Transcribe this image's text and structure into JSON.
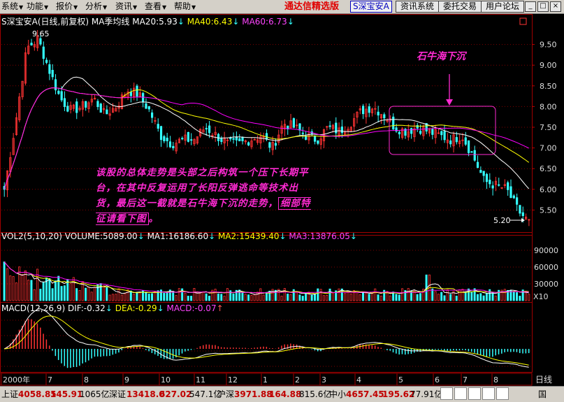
{
  "menu": {
    "items": [
      {
        "label": "系统"
      },
      {
        "label": "功能"
      },
      {
        "label": "报价"
      },
      {
        "label": "分析"
      },
      {
        "label": "资讯"
      },
      {
        "label": "查看"
      },
      {
        "label": "帮助"
      }
    ],
    "app_title": "通达信精选版",
    "stock_tag": "S深宝安A",
    "buttons": [
      "资讯系统",
      "委托交易",
      "用户论坛"
    ],
    "window_buttons": [
      "_",
      "□",
      "×"
    ]
  },
  "price_header": {
    "title": "S深宝安A(日线,前复权)",
    "ma_label": "MA季均线",
    "ma20": "MA20:5.93",
    "ma40": "MA40:6.43",
    "ma60": "MA60:6.73"
  },
  "volume_header": {
    "title": "VOL2(5,10,20)",
    "volume": "VOLUME:5089.00",
    "ma1": "MA1:16186.60",
    "ma2": "MA2:15439.40",
    "ma3": "MA3:13876.05"
  },
  "macd_header": {
    "title": "MACD(12,26,9)",
    "dif": "DIF:-0.32",
    "dea": "DEA:-0.29",
    "macd": "MACD:-0.07"
  },
  "price_axis": [
    "9.50",
    "9.00",
    "8.50",
    "8.00",
    "7.50",
    "7.00",
    "6.50",
    "6.00",
    "5.50"
  ],
  "volume_axis": [
    "90000",
    "60000",
    "30000"
  ],
  "volume_unit": "X10",
  "x_axis": [
    "2000年",
    "7",
    "8",
    "9",
    "10",
    "11",
    "12",
    "1",
    "2",
    "3",
    "4",
    "5",
    "6",
    "7",
    "8"
  ],
  "period_label": "日线",
  "high_label": "9.65",
  "low_label": "5.20",
  "stone_label": "石牛海下沉",
  "annotation": {
    "main": "该股的总体走势是头部之后构筑一个压下长期平台，在其中反复运用了长阳反弹逃命等技术出货，最后这一截就是石牛海下沉的走势，",
    "boxed": "细部特征请看下图",
    "end": "。"
  },
  "status": {
    "sh_label": "上证",
    "sh_value": "4058.85",
    "sh_change": "145.91",
    "sh_amount": "1065亿",
    "sz_label": "深证",
    "sz_value": "13418.0",
    "sz_change": "627.02",
    "sz_amount": "547.1亿",
    "hs_label": "沪深",
    "hs_value": "3971.88",
    "hs_change": "164.88",
    "hs_amount": "815.6亿",
    "zx_label": "中小",
    "zx_value": "4657.45",
    "zx_change": "195.62",
    "zx_amount": "77.91亿",
    "country": "国"
  },
  "colors": {
    "up": "#ff3333",
    "down": "#33ffff",
    "ma20": "#ffffff",
    "ma40": "#ffff00",
    "ma60": "#ff00ff",
    "grid": "#800000",
    "annotation": "#ff2ad2"
  },
  "chart_data": {
    "type": "candlestick",
    "price_range": [
      5.2,
      9.65
    ],
    "ma_series": [
      {
        "name": "MA20",
        "value": 5.93
      },
      {
        "name": "MA40",
        "value": 6.43
      },
      {
        "name": "MA60",
        "value": 6.73
      }
    ],
    "close_path": [
      6.0,
      7.6,
      9.4,
      9.65,
      8.9,
      8.2,
      7.9,
      8.0,
      8.2,
      7.8,
      8.0,
      8.4,
      8.3,
      7.9,
      7.3,
      7.1,
      7.2,
      7.2,
      7.5,
      7.3,
      7.1,
      7.1,
      7.2,
      7.3,
      7.0,
      7.6,
      7.5,
      7.3,
      7.2,
      7.5,
      7.4,
      7.6,
      7.9,
      8.0,
      7.8,
      7.5,
      7.4,
      7.5,
      7.4,
      7.3,
      7.2,
      7.3,
      6.8,
      6.2,
      6.1,
      6.0,
      5.5,
      5.2
    ]
  }
}
